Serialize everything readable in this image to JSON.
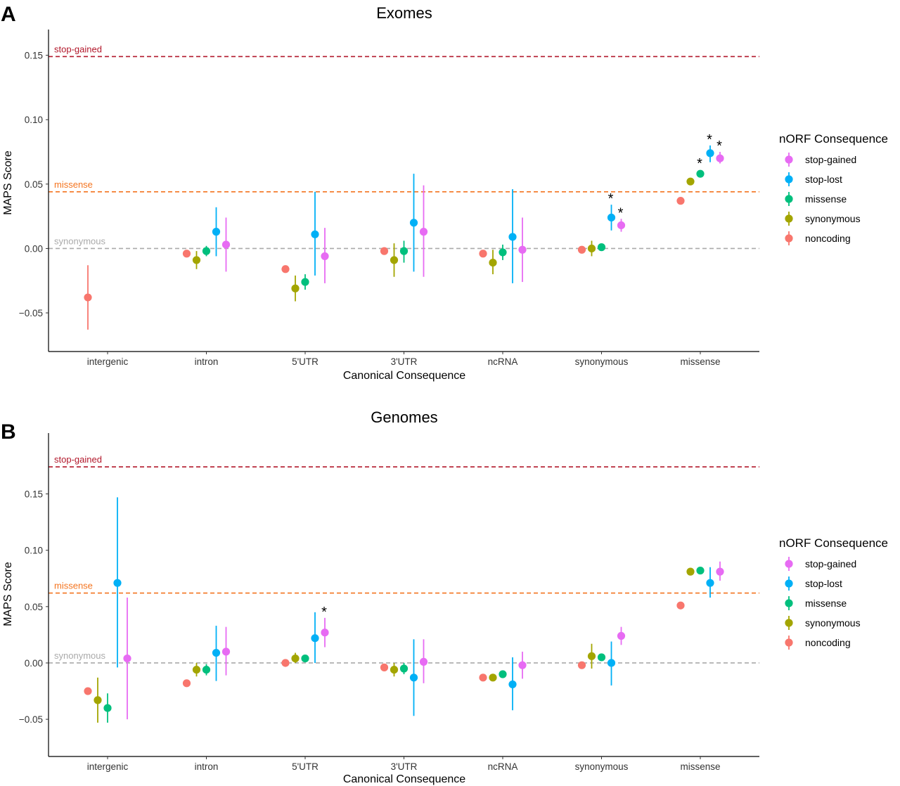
{
  "panels": [
    {
      "letter": "A",
      "title": "Exomes",
      "xlabel": "Canonical Consequence",
      "ylabel": "MAPS Score",
      "legend_title": "nORF Consequence"
    },
    {
      "letter": "B",
      "title": "Genomes",
      "xlabel": "Canonical Consequence",
      "ylabel": "MAPS Score",
      "legend_title": "nORF Consequence"
    }
  ],
  "chart_data": [
    {
      "type": "scatter",
      "subtype": "pointrange",
      "title": "Exomes",
      "xlabel": "Canonical Consequence",
      "ylabel": "MAPS Score",
      "ylim": [
        -0.08,
        0.17
      ],
      "yticks": [
        -0.05,
        0.0,
        0.05,
        0.1,
        0.15
      ],
      "ytick_labels": [
        "−0.05",
        "0.00",
        "0.05",
        "0.10",
        "0.15"
      ],
      "categories": [
        "intergenic",
        "intron",
        "5'UTR",
        "3'UTR",
        "ncRNA",
        "synonymous",
        "missense"
      ],
      "grid": false,
      "legend_title": "nORF Consequence",
      "legend_position": "right",
      "legend_order": [
        "stop-gained",
        "stop-lost",
        "missense",
        "synonymous",
        "noncoding"
      ],
      "colors": {
        "noncoding": "#F8766D",
        "synonymous": "#A3A500",
        "missense": "#00BF7D",
        "stop-lost": "#00B0F6",
        "stop-gained": "#E76BF3"
      },
      "ref_lines": [
        {
          "label": "stop-gained",
          "y": 0.149,
          "color": "#B2182B"
        },
        {
          "label": "missense",
          "y": 0.044,
          "color": "#F4741F"
        },
        {
          "label": "synonymous",
          "y": 0.0,
          "color": "#AAAAAA"
        }
      ],
      "series": [
        {
          "name": "noncoding",
          "points": [
            {
              "x": "intergenic",
              "y": -0.038,
              "lo": -0.063,
              "hi": -0.013
            },
            {
              "x": "intron",
              "y": -0.004
            },
            {
              "x": "5'UTR",
              "y": -0.016
            },
            {
              "x": "3'UTR",
              "y": -0.002
            },
            {
              "x": "ncRNA",
              "y": -0.004
            },
            {
              "x": "synonymous",
              "y": -0.001
            },
            {
              "x": "missense",
              "y": 0.037
            }
          ]
        },
        {
          "name": "synonymous",
          "points": [
            {
              "x": "intron",
              "y": -0.009,
              "lo": -0.016,
              "hi": -0.002
            },
            {
              "x": "5'UTR",
              "y": -0.031,
              "lo": -0.041,
              "hi": -0.021
            },
            {
              "x": "3'UTR",
              "y": -0.009,
              "lo": -0.022,
              "hi": 0.004
            },
            {
              "x": "ncRNA",
              "y": -0.011,
              "lo": -0.02,
              "hi": -0.001
            },
            {
              "x": "synonymous",
              "y": 0.0,
              "lo": -0.006,
              "hi": 0.006
            },
            {
              "x": "missense",
              "y": 0.052
            }
          ]
        },
        {
          "name": "missense",
          "points": [
            {
              "x": "intron",
              "y": -0.002,
              "lo": -0.006,
              "hi": 0.002
            },
            {
              "x": "5'UTR",
              "y": -0.026,
              "lo": -0.032,
              "hi": -0.02
            },
            {
              "x": "3'UTR",
              "y": -0.002,
              "lo": -0.011,
              "hi": 0.006
            },
            {
              "x": "ncRNA",
              "y": -0.003,
              "lo": -0.009,
              "hi": 0.003
            },
            {
              "x": "synonymous",
              "y": 0.001
            },
            {
              "x": "missense",
              "y": 0.058,
              "star": true
            }
          ]
        },
        {
          "name": "stop-lost",
          "points": [
            {
              "x": "intron",
              "y": 0.013,
              "lo": -0.006,
              "hi": 0.032
            },
            {
              "x": "5'UTR",
              "y": 0.011,
              "lo": -0.021,
              "hi": 0.044
            },
            {
              "x": "3'UTR",
              "y": 0.02,
              "lo": -0.018,
              "hi": 0.058
            },
            {
              "x": "ncRNA",
              "y": 0.009,
              "lo": -0.027,
              "hi": 0.046
            },
            {
              "x": "synonymous",
              "y": 0.024,
              "lo": 0.014,
              "hi": 0.034,
              "star": true
            },
            {
              "x": "missense",
              "y": 0.074,
              "lo": 0.067,
              "hi": 0.08,
              "star": true
            }
          ]
        },
        {
          "name": "stop-gained",
          "points": [
            {
              "x": "intron",
              "y": 0.003,
              "lo": -0.018,
              "hi": 0.024
            },
            {
              "x": "5'UTR",
              "y": -0.006,
              "lo": -0.027,
              "hi": 0.016
            },
            {
              "x": "3'UTR",
              "y": 0.013,
              "lo": -0.022,
              "hi": 0.049
            },
            {
              "x": "ncRNA",
              "y": -0.001,
              "lo": -0.026,
              "hi": 0.024
            },
            {
              "x": "synonymous",
              "y": 0.018,
              "lo": 0.013,
              "hi": 0.023,
              "star": true
            },
            {
              "x": "missense",
              "y": 0.07,
              "lo": 0.066,
              "hi": 0.075,
              "star": true
            }
          ]
        }
      ]
    },
    {
      "type": "scatter",
      "subtype": "pointrange",
      "title": "Genomes",
      "xlabel": "Canonical Consequence",
      "ylabel": "MAPS Score",
      "ylim": [
        -0.083,
        0.204
      ],
      "yticks": [
        -0.05,
        0.0,
        0.05,
        0.1,
        0.15
      ],
      "ytick_labels": [
        "−0.05",
        "0.00",
        "0.05",
        "0.10",
        "0.15"
      ],
      "categories": [
        "intergenic",
        "intron",
        "5'UTR",
        "3'UTR",
        "ncRNA",
        "synonymous",
        "missense"
      ],
      "grid": false,
      "legend_title": "nORF Consequence",
      "legend_position": "right",
      "legend_order": [
        "stop-gained",
        "stop-lost",
        "missense",
        "synonymous",
        "noncoding"
      ],
      "colors": {
        "noncoding": "#F8766D",
        "synonymous": "#A3A500",
        "missense": "#00BF7D",
        "stop-lost": "#00B0F6",
        "stop-gained": "#E76BF3"
      },
      "ref_lines": [
        {
          "label": "stop-gained",
          "y": 0.174,
          "color": "#B2182B"
        },
        {
          "label": "missense",
          "y": 0.062,
          "color": "#F4741F"
        },
        {
          "label": "synonymous",
          "y": 0.0,
          "color": "#AAAAAA"
        }
      ],
      "series": [
        {
          "name": "noncoding",
          "points": [
            {
              "x": "intergenic",
              "y": -0.025
            },
            {
              "x": "intron",
              "y": -0.018
            },
            {
              "x": "5'UTR",
              "y": 0.0
            },
            {
              "x": "3'UTR",
              "y": -0.004
            },
            {
              "x": "ncRNA",
              "y": -0.013
            },
            {
              "x": "synonymous",
              "y": -0.002
            },
            {
              "x": "missense",
              "y": 0.051
            }
          ]
        },
        {
          "name": "synonymous",
          "points": [
            {
              "x": "intergenic",
              "y": -0.033,
              "lo": -0.053,
              "hi": -0.013
            },
            {
              "x": "intron",
              "y": -0.006,
              "lo": -0.012,
              "hi": 0.0
            },
            {
              "x": "5'UTR",
              "y": 0.004,
              "lo": 0.0,
              "hi": 0.009
            },
            {
              "x": "3'UTR",
              "y": -0.006,
              "lo": -0.012,
              "hi": 0.0
            },
            {
              "x": "ncRNA",
              "y": -0.013,
              "lo": -0.016,
              "hi": -0.01
            },
            {
              "x": "synonymous",
              "y": 0.006,
              "lo": -0.005,
              "hi": 0.017
            },
            {
              "x": "missense",
              "y": 0.081
            }
          ]
        },
        {
          "name": "missense",
          "points": [
            {
              "x": "intergenic",
              "y": -0.04,
              "lo": -0.053,
              "hi": -0.027
            },
            {
              "x": "intron",
              "y": -0.006,
              "lo": -0.011,
              "hi": -0.001
            },
            {
              "x": "5'UTR",
              "y": 0.004
            },
            {
              "x": "3'UTR",
              "y": -0.005,
              "lo": -0.01,
              "hi": 0.0
            },
            {
              "x": "ncRNA",
              "y": -0.01
            },
            {
              "x": "synonymous",
              "y": 0.005
            },
            {
              "x": "missense",
              "y": 0.082
            }
          ]
        },
        {
          "name": "stop-lost",
          "points": [
            {
              "x": "intergenic",
              "y": 0.071,
              "lo": -0.004,
              "hi": 0.147
            },
            {
              "x": "intron",
              "y": 0.009,
              "lo": -0.016,
              "hi": 0.033
            },
            {
              "x": "5'UTR",
              "y": 0.022,
              "lo": 0.0,
              "hi": 0.045
            },
            {
              "x": "3'UTR",
              "y": -0.013,
              "lo": -0.047,
              "hi": 0.021
            },
            {
              "x": "ncRNA",
              "y": -0.019,
              "lo": -0.042,
              "hi": 0.005
            },
            {
              "x": "synonymous",
              "y": 0.0,
              "lo": -0.02,
              "hi": 0.019
            },
            {
              "x": "missense",
              "y": 0.071,
              "lo": 0.058,
              "hi": 0.085
            }
          ]
        },
        {
          "name": "stop-gained",
          "points": [
            {
              "x": "intergenic",
              "y": 0.004,
              "lo": -0.05,
              "hi": 0.058
            },
            {
              "x": "intron",
              "y": 0.01,
              "lo": -0.011,
              "hi": 0.032
            },
            {
              "x": "5'UTR",
              "y": 0.027,
              "lo": 0.014,
              "hi": 0.04,
              "star": true
            },
            {
              "x": "3'UTR",
              "y": 0.001,
              "lo": -0.018,
              "hi": 0.021
            },
            {
              "x": "ncRNA",
              "y": -0.002,
              "lo": -0.014,
              "hi": 0.01
            },
            {
              "x": "synonymous",
              "y": 0.024,
              "lo": 0.016,
              "hi": 0.032
            },
            {
              "x": "missense",
              "y": 0.081,
              "lo": 0.073,
              "hi": 0.09
            }
          ]
        }
      ]
    }
  ]
}
